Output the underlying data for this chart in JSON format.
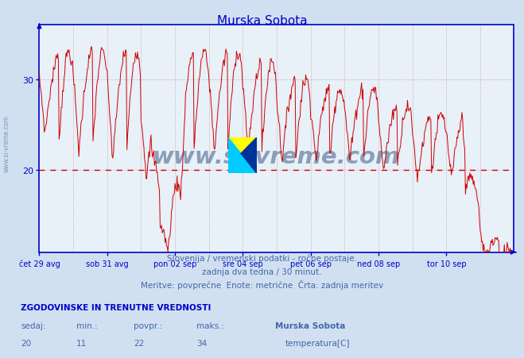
{
  "title": "Murska Sobota",
  "bg_color": "#d0e0f0",
  "plot_bg_color": "#e8f0f8",
  "line_color": "#cc0000",
  "dashed_line_color": "#cc0000",
  "dashed_line_value": 20,
  "grid_color": "#cc9999",
  "axis_color": "#0000cc",
  "text_color": "#4466aa",
  "ylim": [
    11,
    36
  ],
  "yticks": [
    20,
    30
  ],
  "xlabel_ticks": [
    "čet 29 avg",
    "sob 31 avg",
    "pon 02 sep",
    "sre 04 sep",
    "pet 06 sep",
    "ned 08 sep",
    "tor 10 sep"
  ],
  "footer_line1": "Slovenija / vremenski podatki - ročne postaje.",
  "footer_line2": "zadnja dva tedna / 30 minut.",
  "footer_line3": "Meritve: povprečne  Enote: metrične  Črta: zadnja meritev",
  "stats_header": "ZGODOVINSKE IN TRENUTNE VREDNOSTI",
  "stats_sedaj_label": "sedaj:",
  "stats_min_label": "min.:",
  "stats_povpr_label": "povpr.:",
  "stats_maks_label": "maks.:",
  "stats_sedaj": 20,
  "stats_min": 11,
  "stats_povpr": 22,
  "stats_maks": 34,
  "stats_location": "Murska Sobota",
  "stats_var": "temperatura[C]",
  "watermark": "www.si-vreme.com",
  "watermark_color": "#1a3a6a",
  "n_points": 672,
  "logo_yellow": "#ffff00",
  "logo_cyan": "#00ccff",
  "logo_blue": "#003399"
}
